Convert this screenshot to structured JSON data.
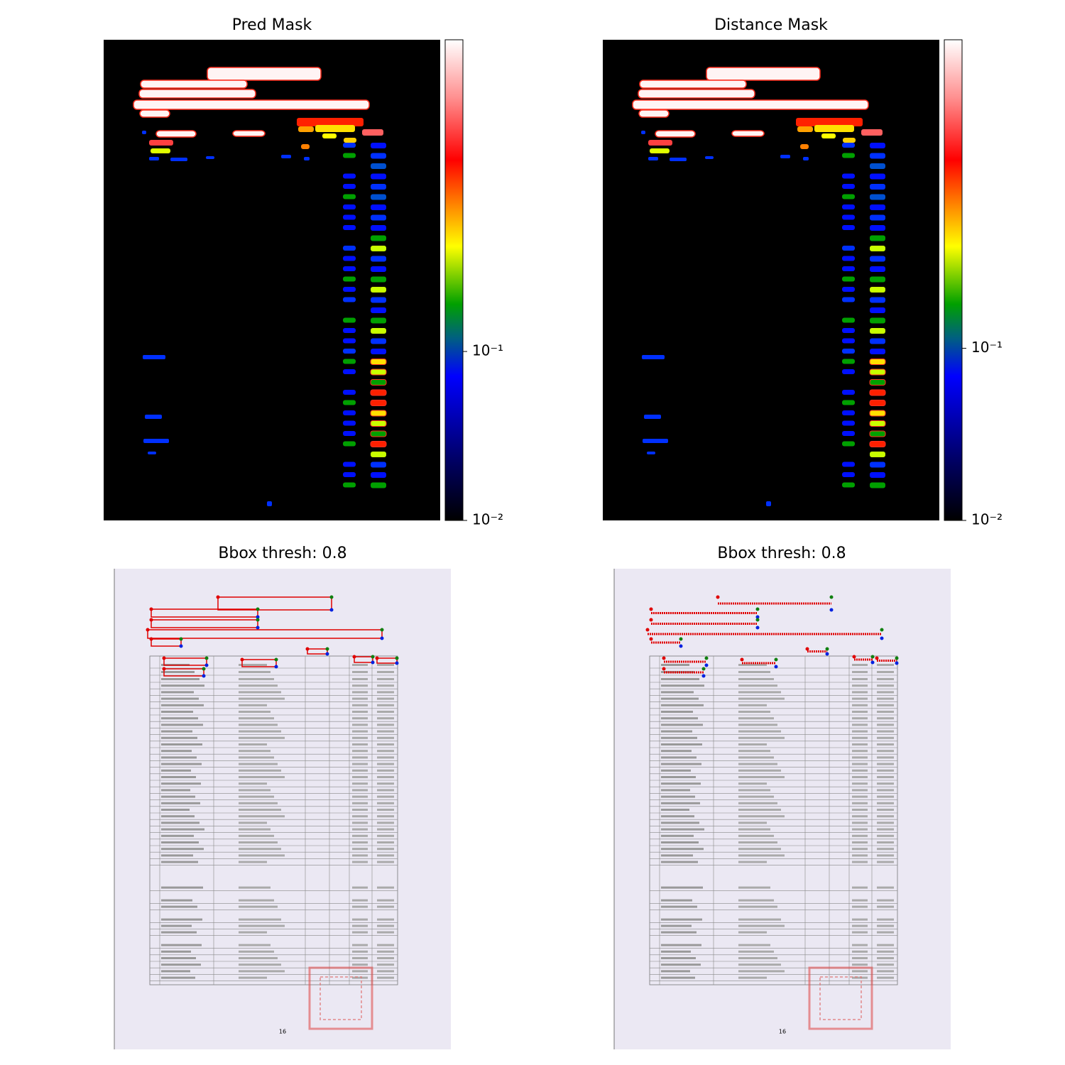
{
  "chart_data": [
    {
      "type": "heatmap",
      "title": "Pred Mask",
      "log_scale": true,
      "ylim": [
        0.01,
        7
      ],
      "yticks": [
        {
          "value": 0.1,
          "label": "10⁻¹"
        },
        {
          "value": 0.01,
          "label": "10⁻²"
        }
      ]
    },
    {
      "type": "heatmap",
      "title": "Distance Mask",
      "log_scale": true,
      "ylim": [
        0.01,
        6.2
      ],
      "yticks": [
        {
          "value": 0.1,
          "label": "10⁻¹"
        },
        {
          "value": 0.01,
          "label": "10⁻²"
        }
      ]
    },
    {
      "type": "image",
      "title": "Bbox thresh: 0.8",
      "page_label": "16"
    },
    {
      "type": "image",
      "title": "Bbox thresh: 0.8",
      "page_label": "16"
    }
  ]
}
